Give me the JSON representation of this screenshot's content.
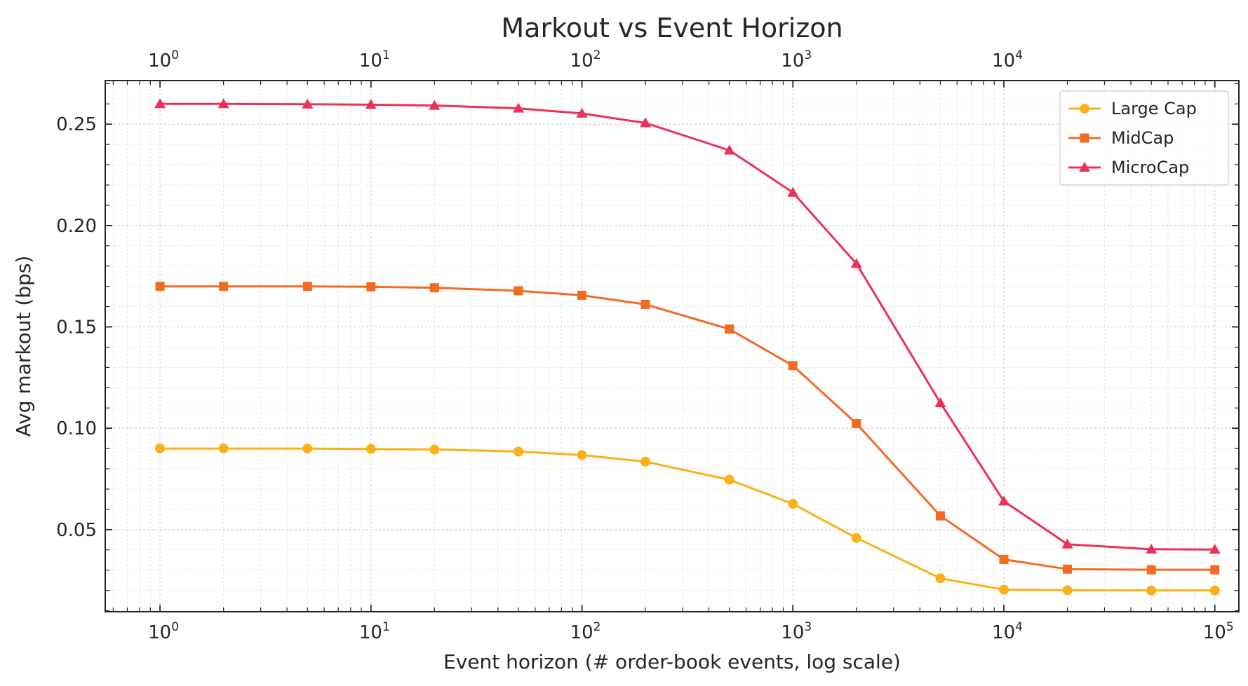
{
  "chart_data": {
    "type": "line",
    "title": "Markout vs Event Horizon",
    "xlabel": "Event horizon (# order-book events, log scale)",
    "ylabel": "Avg markout (bps)",
    "x_scale": "log",
    "xlim": [
      0.55,
      130000
    ],
    "ylim": [
      0.0095,
      0.2715
    ],
    "grid": true,
    "legend_position": "top-right",
    "x_tick_values": [
      1,
      10,
      100,
      1000,
      10000,
      100000
    ],
    "x_tick_labels": [
      {
        "base": "10",
        "exp": "0"
      },
      {
        "base": "10",
        "exp": "1"
      },
      {
        "base": "10",
        "exp": "2"
      },
      {
        "base": "10",
        "exp": "3"
      },
      {
        "base": "10",
        "exp": "4"
      },
      {
        "base": "10",
        "exp": "5"
      }
    ],
    "top_x_tick_values": [
      1,
      10,
      100,
      1000,
      10000
    ],
    "top_x_tick_labels": [
      {
        "base": "10",
        "exp": "0"
      },
      {
        "base": "10",
        "exp": "1"
      },
      {
        "base": "10",
        "exp": "2"
      },
      {
        "base": "10",
        "exp": "3"
      },
      {
        "base": "10",
        "exp": "4"
      }
    ],
    "y_tick_values": [
      0.05,
      0.1,
      0.15,
      0.2,
      0.25
    ],
    "y_tick_labels": [
      "0.05",
      "0.10",
      "0.15",
      "0.20",
      "0.25"
    ],
    "x": [
      1,
      2,
      5,
      10,
      20,
      50,
      100,
      200,
      500,
      1000,
      2000,
      5000,
      10000,
      20000,
      50000,
      100000
    ],
    "series": [
      {
        "name": "Large Cap",
        "color": "#FBB017",
        "marker": "circle",
        "values": [
          0.09,
          0.09,
          0.09,
          0.0898,
          0.0895,
          0.0885,
          0.0868,
          0.0835,
          0.0746,
          0.0627,
          0.0459,
          0.026,
          0.0204,
          0.0201,
          0.02,
          0.02
        ]
      },
      {
        "name": "MidCap",
        "color": "#F26B21",
        "marker": "square",
        "values": [
          0.17,
          0.17,
          0.17,
          0.1698,
          0.1693,
          0.1678,
          0.1656,
          0.1611,
          0.1489,
          0.1309,
          0.1023,
          0.0568,
          0.0353,
          0.0305,
          0.0302,
          0.0302
        ]
      },
      {
        "name": "MicroCap",
        "color": "#ED2F59",
        "marker": "triangle",
        "values": [
          0.26,
          0.26,
          0.2598,
          0.2596,
          0.2592,
          0.2578,
          0.2553,
          0.2506,
          0.2371,
          0.2163,
          0.1812,
          0.1125,
          0.064,
          0.0428,
          0.0403,
          0.0402
        ]
      }
    ]
  }
}
